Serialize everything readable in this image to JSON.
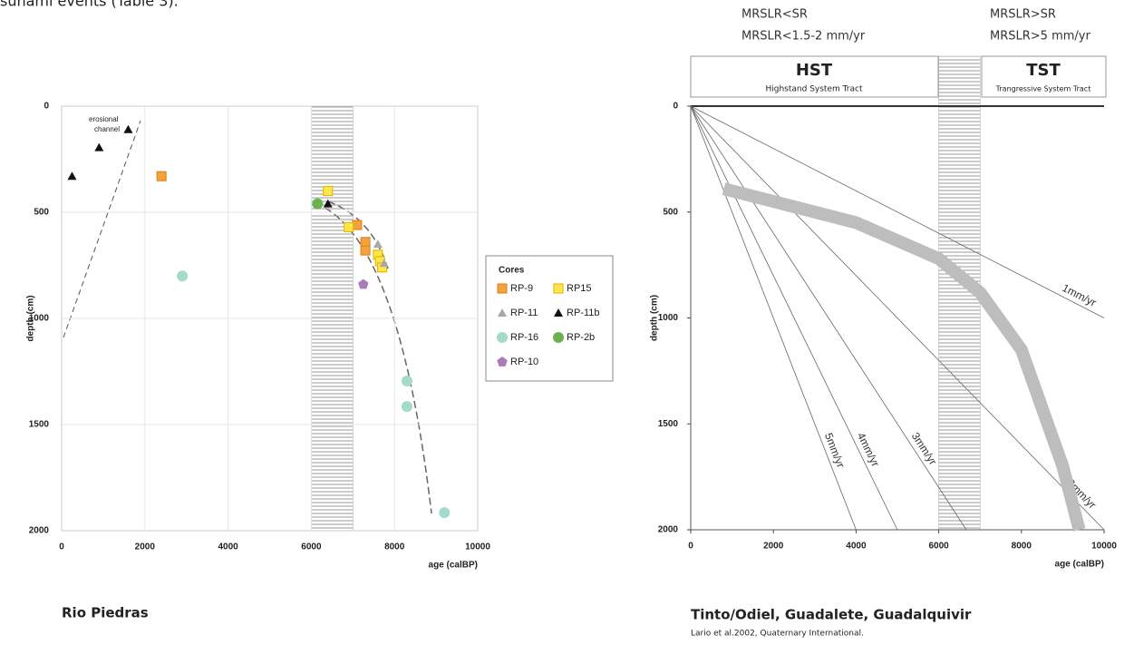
{
  "page_text": "sunami events (Table 3).",
  "chart_data": [
    {
      "type": "scatter",
      "title": "Rio Piedras",
      "xlabel": "age (calBP)",
      "ylabel": "depth (cm)",
      "xlim": [
        0,
        10000
      ],
      "ylim": [
        0,
        2000
      ],
      "y_inverted": true,
      "xticks": [
        0,
        2000,
        4000,
        6000,
        8000,
        10000
      ],
      "yticks": [
        0,
        500,
        1000,
        1500,
        2000
      ],
      "grid": true,
      "band": [
        6000,
        7000
      ],
      "annotation": [
        "erosional",
        "channel"
      ],
      "legend_title": "Cores",
      "legend_loc": "right",
      "series": [
        {
          "name": "RP-9",
          "marker": "square",
          "color": "#f2a43a",
          "x": [
            2400,
            7100,
            7300,
            7300
          ],
          "values": [
            330,
            560,
            640,
            680
          ]
        },
        {
          "name": "RP15",
          "marker": "square",
          "color": "#ffe74a",
          "x": [
            6400,
            6900,
            7600,
            7650,
            7700
          ],
          "values": [
            400,
            570,
            700,
            730,
            760
          ]
        },
        {
          "name": "RP-11",
          "marker": "triangle",
          "color": "#a8a8a8",
          "x": [
            7600,
            7750
          ],
          "values": [
            650,
            740
          ]
        },
        {
          "name": "RP-11b",
          "marker": "triangle",
          "color": "#111111",
          "x": [
            250,
            900,
            1600,
            6400
          ],
          "values": [
            330,
            195,
            110,
            460
          ]
        },
        {
          "name": "RP-16",
          "marker": "circle",
          "color": "#a3dacb",
          "x": [
            2900,
            8300,
            8300,
            9200
          ],
          "values": [
            800,
            1295,
            1415,
            1915
          ]
        },
        {
          "name": "RP-2b",
          "marker": "circle",
          "color": "#6db24e",
          "x": [
            6150
          ],
          "values": [
            460
          ]
        },
        {
          "name": "RP-10",
          "marker": "pentagon",
          "color": "#a87bbb",
          "x": [
            7250
          ],
          "values": [
            840
          ]
        }
      ]
    },
    {
      "type": "line",
      "title": "Tinto/Odiel, Guadalete, Guadalquivir",
      "source": "Lario et al.2002, Quaternary International.",
      "xlabel": "age (calBP)",
      "ylabel": "depth (cm)",
      "xlim": [
        0,
        10000
      ],
      "ylim": [
        0,
        2000
      ],
      "y_inverted": true,
      "xticks": [
        0,
        2000,
        4000,
        6000,
        8000,
        10000
      ],
      "yticks": [
        0,
        500,
        1000,
        1500,
        2000
      ],
      "grid": false,
      "band": [
        6000,
        7000
      ],
      "header": {
        "left_lines": [
          "MRSLR<SR",
          "MRSLR<1.5-2 mm/yr"
        ],
        "right_lines": [
          "MRSLR>SR",
          "MRSLR>5 mm/yr"
        ],
        "hst": "HST",
        "hst_sub": "Highstand System Tract",
        "tst": "TST",
        "tst_sub": "Trangressive System Tract"
      },
      "series": [
        {
          "name": "1mm/yr",
          "color": "#666666",
          "x": [
            0,
            10000
          ],
          "values": [
            0,
            1000
          ]
        },
        {
          "name": "2mm/yr",
          "color": "#666666",
          "x": [
            0,
            10000
          ],
          "values": [
            0,
            2000
          ]
        },
        {
          "name": "3mm/yr",
          "color": "#666666",
          "x": [
            0,
            6667
          ],
          "values": [
            0,
            2000
          ]
        },
        {
          "name": "4mm/yr",
          "color": "#666666",
          "x": [
            0,
            5000
          ],
          "values": [
            0,
            2000
          ]
        },
        {
          "name": "5mm/yr",
          "color": "#666666",
          "x": [
            0,
            4000
          ],
          "values": [
            0,
            2000
          ]
        },
        {
          "color": "#bdbdbd",
          "x": [
            800,
            2000,
            4000,
            6000,
            7000,
            8000,
            9000,
            9400
          ],
          "values": [
            390,
            450,
            550,
            720,
            880,
            1150,
            1700,
            2000
          ]
        }
      ]
    }
  ]
}
